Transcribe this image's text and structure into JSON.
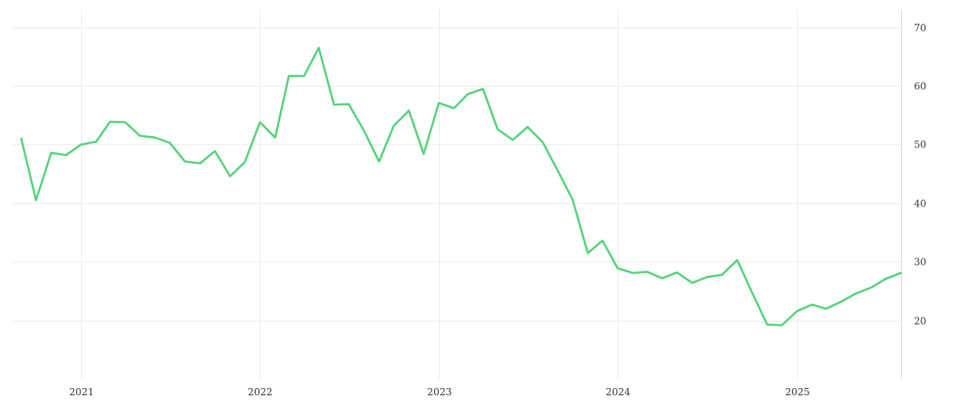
{
  "chart_data": {
    "type": "line",
    "title": "",
    "xlabel": "",
    "ylabel": "",
    "x_ticks": [
      "2021",
      "2022",
      "2023",
      "2024",
      "2025"
    ],
    "y_ticks": [
      20,
      30,
      40,
      50,
      60,
      70
    ],
    "xlim": [
      "2020-08-15",
      "2025-08-01"
    ],
    "ylim": [
      10,
      73
    ],
    "grid": true,
    "y_axis_side": "right",
    "series": [
      {
        "color": "#55d27a",
        "x": [
          "2020-09-01",
          "2020-10-01",
          "2020-11-01",
          "2020-12-01",
          "2021-01-01",
          "2021-02-01",
          "2021-03-01",
          "2021-04-01",
          "2021-05-01",
          "2021-06-01",
          "2021-07-01",
          "2021-08-01",
          "2021-09-01",
          "2021-10-01",
          "2021-11-01",
          "2021-12-01",
          "2022-01-01",
          "2022-02-01",
          "2022-03-01",
          "2022-04-01",
          "2022-05-01",
          "2022-06-01",
          "2022-07-01",
          "2022-08-01",
          "2022-09-01",
          "2022-10-01",
          "2022-11-01",
          "2022-12-01",
          "2023-01-01",
          "2023-02-01",
          "2023-03-01",
          "2023-04-01",
          "2023-05-01",
          "2023-06-01",
          "2023-07-01",
          "2023-08-01",
          "2023-09-01",
          "2023-10-01",
          "2023-11-01",
          "2023-12-01",
          "2024-01-01",
          "2024-02-01",
          "2024-03-01",
          "2024-04-01",
          "2024-05-01",
          "2024-06-01",
          "2024-07-01",
          "2024-08-01",
          "2024-09-01",
          "2024-10-01",
          "2024-11-01",
          "2024-12-01",
          "2025-01-01",
          "2025-02-01",
          "2025-03-01",
          "2025-04-01",
          "2025-05-01",
          "2025-06-01",
          "2025-07-01",
          "2025-08-01"
        ],
        "values": [
          51.0,
          40.5,
          48.6,
          48.2,
          50.0,
          50.5,
          53.9,
          53.8,
          51.5,
          51.2,
          50.3,
          47.1,
          46.8,
          48.9,
          44.6,
          47.0,
          53.8,
          51.2,
          61.7,
          61.7,
          66.5,
          56.8,
          56.9,
          52.4,
          47.1,
          53.2,
          55.8,
          48.4,
          57.1,
          56.2,
          58.6,
          59.5,
          52.6,
          50.8,
          53.0,
          50.4,
          45.5,
          40.6,
          31.5,
          33.6,
          28.9,
          28.1,
          28.3,
          27.2,
          28.2,
          26.4,
          27.4,
          27.8,
          30.3,
          24.8,
          19.3,
          19.2,
          21.6,
          22.7,
          22.0,
          23.2,
          24.6,
          25.6,
          27.1,
          28.1
        ]
      }
    ]
  }
}
